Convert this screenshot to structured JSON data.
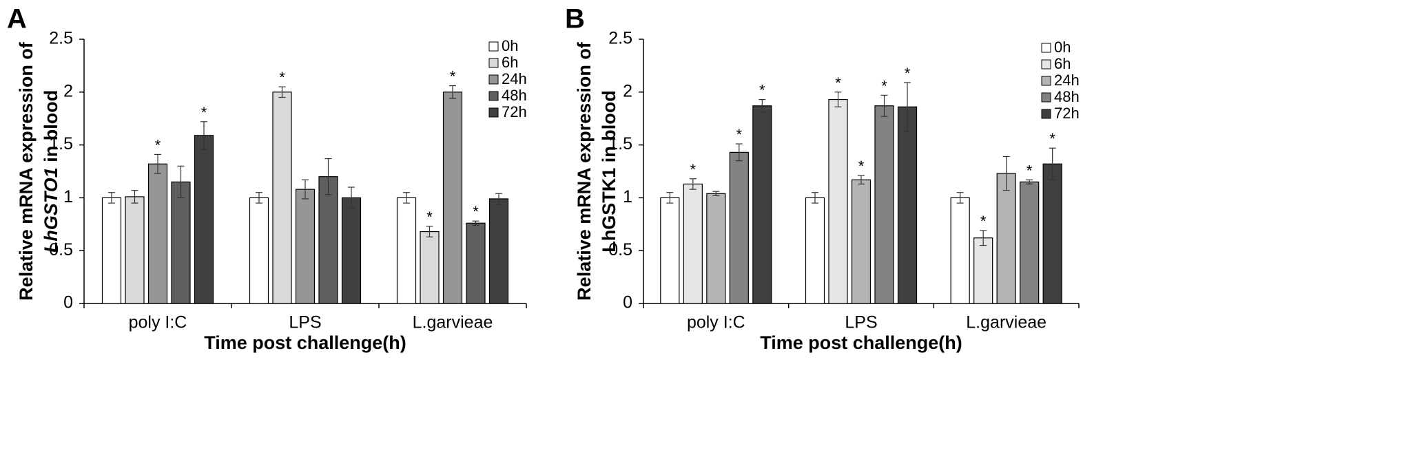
{
  "chart_data": [
    {
      "type": "bar",
      "panel_label": "A",
      "ylabel_line1": "Relative mRNA expression of",
      "ylabel_line2_gene": "LhGSTO1",
      "ylabel_line2_gene_italic": true,
      "ylabel_line2_rest": " in blood",
      "xlabel": "Time post challenge(h)",
      "ylim": [
        0,
        2.5
      ],
      "yticks": [
        "0",
        "0.5",
        "1",
        "1.5",
        "2",
        "2.5"
      ],
      "categories": [
        "poly I:C",
        "LPS",
        "L.garvieae"
      ],
      "legend_position": "top-right",
      "series": [
        {
          "name": "0h",
          "color": "#ffffff",
          "values": [
            1.0,
            1.0,
            1.0
          ],
          "errors": [
            0.05,
            0.05,
            0.05
          ],
          "significant": [
            false,
            false,
            false
          ]
        },
        {
          "name": "6h",
          "color": "#d9d9d9",
          "values": [
            1.01,
            2.0,
            0.68
          ],
          "errors": [
            0.06,
            0.05,
            0.05
          ],
          "significant": [
            false,
            true,
            true
          ]
        },
        {
          "name": "24h",
          "color": "#969696",
          "values": [
            1.32,
            1.08,
            2.0
          ],
          "errors": [
            0.09,
            0.09,
            0.06
          ],
          "significant": [
            true,
            false,
            true
          ]
        },
        {
          "name": "48h",
          "color": "#5f5f5f",
          "values": [
            1.15,
            1.2,
            0.76
          ],
          "errors": [
            0.15,
            0.17,
            0.02
          ],
          "significant": [
            false,
            false,
            true
          ]
        },
        {
          "name": "72h",
          "color": "#404040",
          "values": [
            1.59,
            1.0,
            0.99
          ],
          "errors": [
            0.13,
            0.1,
            0.05
          ],
          "significant": [
            true,
            false,
            false
          ]
        }
      ]
    },
    {
      "type": "bar",
      "panel_label": "B",
      "ylabel_line1": "Relative mRNA expression of",
      "ylabel_line2_gene": "LhGSTK1",
      "ylabel_line2_gene_italic": false,
      "ylabel_line2_rest": " in blood",
      "xlabel": "Time post challenge(h)",
      "ylim": [
        0,
        2.5
      ],
      "yticks": [
        "0",
        "0.5",
        "1",
        "1.5",
        "2",
        "2.5"
      ],
      "categories": [
        "poly I:C",
        "LPS",
        "L.garvieae"
      ],
      "legend_position": "top-right",
      "series": [
        {
          "name": "0h",
          "color": "#ffffff",
          "values": [
            1.0,
            1.0,
            1.0
          ],
          "errors": [
            0.05,
            0.05,
            0.05
          ],
          "significant": [
            false,
            false,
            false
          ]
        },
        {
          "name": "6h",
          "color": "#e6e6e6",
          "values": [
            1.13,
            1.93,
            0.62
          ],
          "errors": [
            0.05,
            0.07,
            0.07
          ],
          "significant": [
            true,
            true,
            true
          ]
        },
        {
          "name": "24h",
          "color": "#b4b4b4",
          "values": [
            1.04,
            1.17,
            1.23
          ],
          "errors": [
            0.02,
            0.04,
            0.16
          ],
          "significant": [
            false,
            true,
            false
          ]
        },
        {
          "name": "48h",
          "color": "#828282",
          "values": [
            1.43,
            1.87,
            1.15
          ],
          "errors": [
            0.08,
            0.1,
            0.02
          ],
          "significant": [
            true,
            true,
            true
          ]
        },
        {
          "name": "72h",
          "color": "#404040",
          "values": [
            1.87,
            1.86,
            1.32
          ],
          "errors": [
            0.06,
            0.23,
            0.15
          ],
          "significant": [
            true,
            true,
            true
          ]
        }
      ]
    }
  ]
}
